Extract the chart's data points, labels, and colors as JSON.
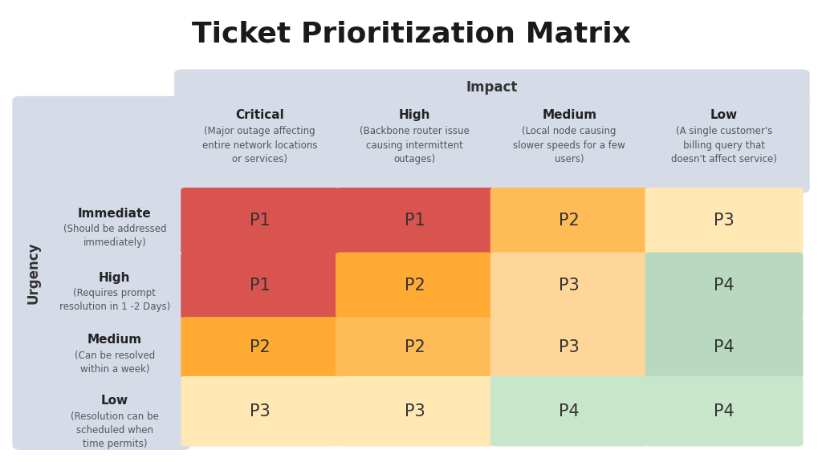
{
  "title": "Ticket Prioritization Matrix",
  "impact_label": "Impact",
  "urgency_label": "Urgency",
  "col_headers": [
    "Critical",
    "High",
    "Medium",
    "Low"
  ],
  "col_subtext": [
    "(Major outage affecting\nentire network locations\nor services)",
    "(Backbone router issue\ncausing intermittent\noutages)",
    "(Local node causing\nslower speeds for a few\nusers)",
    "(A single customer's\nbilling query that\ndoesn't affect service)"
  ],
  "row_headers": [
    "Immediate",
    "High",
    "Medium",
    "Low"
  ],
  "row_subtext": [
    "(Should be addressed\nimmediately)",
    "(Requires prompt\nresolution in 1 -2 Days)",
    "(Can be resolved\nwithin a week)",
    "(Resolution can be\nscheduled when\ntime permits)"
  ],
  "matrix_values": [
    [
      "P1",
      "P1",
      "P2",
      "P3"
    ],
    [
      "P1",
      "P2",
      "P3",
      "P4"
    ],
    [
      "P2",
      "P2",
      "P3",
      "P4"
    ],
    [
      "P3",
      "P3",
      "P4",
      "P4"
    ]
  ],
  "cell_colors": [
    [
      "#D9534F",
      "#D9534F",
      "#FFBB55",
      "#FFE8B3"
    ],
    [
      "#D9534F",
      "#FFAA33",
      "#FFD699",
      "#B8D9C0"
    ],
    [
      "#FFAA33",
      "#FFBB55",
      "#FFD699",
      "#B8D9C0"
    ],
    [
      "#FFE8B3",
      "#FFE8B3",
      "#C8E6C9",
      "#C8E6C9"
    ]
  ],
  "background_color": "#FFFFFF",
  "header_bg": "#D6DBE8",
  "urgency_bg": "#D6DBE8",
  "title_fontsize": 26,
  "impact_header_fontsize": 12,
  "col_header_fontsize": 11,
  "subtext_fontsize": 8.5,
  "cell_fontsize": 15,
  "row_header_fontsize": 11,
  "row_subtext_fontsize": 8.5,
  "urgency_fontsize": 12
}
